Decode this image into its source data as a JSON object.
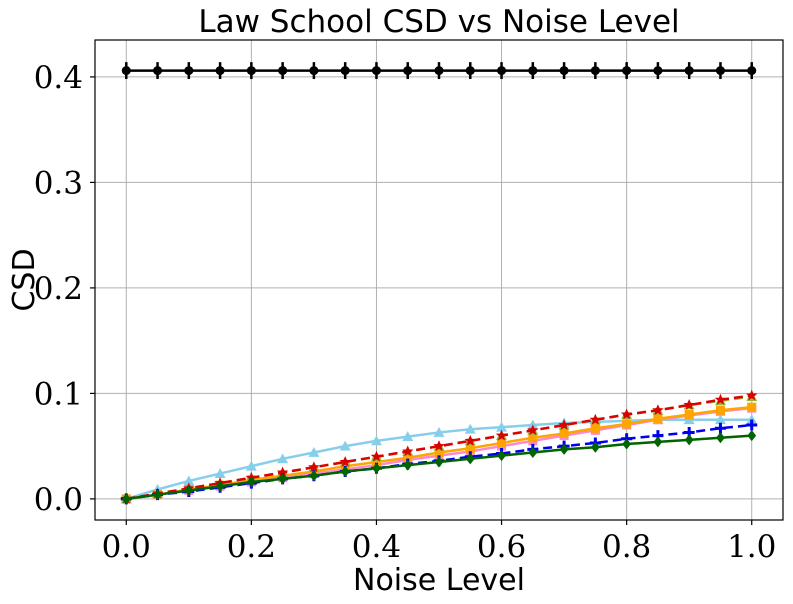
{
  "chart_data": {
    "type": "line",
    "title": "Law School CSD vs Noise Level",
    "xlabel": "Noise Level",
    "ylabel": "CSD",
    "xlim": [
      -0.05,
      1.05
    ],
    "ylim": [
      -0.02,
      0.435
    ],
    "xticks": [
      0.0,
      0.2,
      0.4,
      0.6,
      0.8,
      1.0
    ],
    "xtick_labels": [
      "0.0",
      "0.2",
      "0.4",
      "0.6",
      "0.8",
      "1.0"
    ],
    "yticks": [
      0.0,
      0.1,
      0.2,
      0.3,
      0.4
    ],
    "ytick_labels": [
      "0.0",
      "0.1",
      "0.2",
      "0.3",
      "0.4"
    ],
    "grid": true,
    "x": [
      0.0,
      0.05,
      0.1,
      0.15,
      0.2,
      0.25,
      0.3,
      0.35,
      0.4,
      0.45,
      0.5,
      0.55,
      0.6,
      0.65,
      0.7,
      0.75,
      0.8,
      0.85,
      0.9,
      0.95,
      1.0
    ],
    "series": [
      {
        "name": "black",
        "color": "#000000",
        "dash": "solid",
        "marker": "circle",
        "errorbar": 0.008,
        "values": [
          0.406,
          0.406,
          0.406,
          0.406,
          0.406,
          0.406,
          0.406,
          0.406,
          0.406,
          0.406,
          0.406,
          0.406,
          0.406,
          0.406,
          0.406,
          0.406,
          0.406,
          0.406,
          0.406,
          0.406,
          0.406
        ]
      },
      {
        "name": "skyblue",
        "color": "#87ceeb",
        "dash": "solid",
        "marker": "triangle",
        "values": [
          0.0,
          0.009,
          0.017,
          0.024,
          0.031,
          0.038,
          0.044,
          0.05,
          0.055,
          0.059,
          0.063,
          0.066,
          0.068,
          0.07,
          0.072,
          0.073,
          0.074,
          0.075,
          0.075,
          0.075,
          0.075
        ]
      },
      {
        "name": "pink",
        "color": "#ff88cc",
        "dash": "solid",
        "marker": "square",
        "values": [
          0.0,
          0.004,
          0.008,
          0.012,
          0.016,
          0.02,
          0.024,
          0.028,
          0.032,
          0.037,
          0.041,
          0.045,
          0.05,
          0.055,
          0.06,
          0.065,
          0.07,
          0.075,
          0.079,
          0.083,
          0.086
        ]
      },
      {
        "name": "orange",
        "color": "#ffa500",
        "dash": "solid",
        "marker": "square",
        "values": [
          0.0,
          0.004,
          0.009,
          0.013,
          0.018,
          0.022,
          0.026,
          0.031,
          0.035,
          0.039,
          0.044,
          0.048,
          0.053,
          0.058,
          0.062,
          0.067,
          0.071,
          0.076,
          0.08,
          0.084,
          0.087
        ]
      },
      {
        "name": "olive",
        "color": "#8fbc3f",
        "dash": "dashed",
        "marker": "triangle",
        "values": [
          0.0,
          0.005,
          0.01,
          0.015,
          0.02,
          0.025,
          0.03,
          0.035,
          0.04,
          0.045,
          0.05,
          0.055,
          0.06,
          0.065,
          0.07,
          0.075,
          0.08,
          0.084,
          0.089,
          0.093,
          0.097
        ]
      },
      {
        "name": "red",
        "color": "#dd0000",
        "dash": "dashed",
        "marker": "star",
        "values": [
          0.0,
          0.005,
          0.01,
          0.015,
          0.02,
          0.025,
          0.03,
          0.035,
          0.04,
          0.045,
          0.05,
          0.055,
          0.06,
          0.065,
          0.07,
          0.075,
          0.08,
          0.084,
          0.089,
          0.094,
          0.098
        ]
      },
      {
        "name": "blue",
        "color": "#0000ee",
        "dash": "dashed",
        "marker": "plus",
        "values": [
          0.0,
          0.004,
          0.007,
          0.011,
          0.015,
          0.019,
          0.022,
          0.026,
          0.029,
          0.033,
          0.036,
          0.04,
          0.043,
          0.047,
          0.05,
          0.053,
          0.057,
          0.06,
          0.063,
          0.067,
          0.07
        ]
      },
      {
        "name": "green",
        "color": "#006400",
        "dash": "solid",
        "marker": "diamond",
        "values": [
          0.0,
          0.004,
          0.008,
          0.012,
          0.016,
          0.019,
          0.022,
          0.026,
          0.029,
          0.032,
          0.035,
          0.038,
          0.041,
          0.044,
          0.047,
          0.049,
          0.052,
          0.054,
          0.056,
          0.058,
          0.06
        ]
      }
    ]
  }
}
